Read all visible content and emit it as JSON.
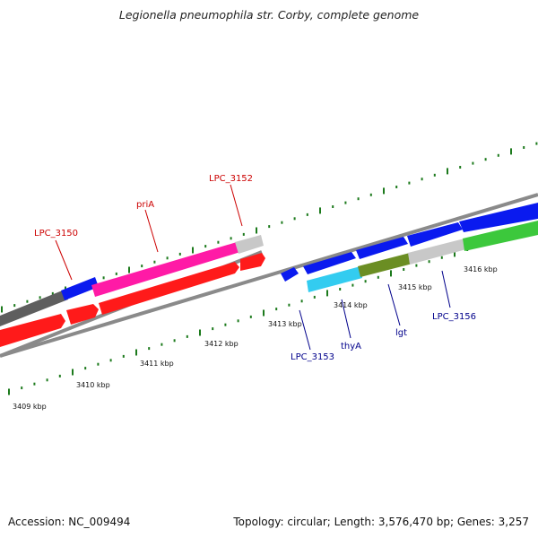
{
  "title": "Legionella pneumophila str. Corby, complete genome",
  "footer": {
    "accession": "Accession: NC_009494",
    "topology": "Topology: circular; Length: 3,576,470 bp; Genes: 3,257"
  },
  "colors": {
    "backbone": "#8a8a8a",
    "tick": "#1c7a1c",
    "label_forward": "#cc0000",
    "label_reverse": "#00008b",
    "red": "#ff1a1a",
    "magenta": "#ff1aa6",
    "blue": "#0a1aef",
    "cyan": "#33ccf0",
    "olive": "#6b8e23",
    "green": "#3cc83c",
    "dark_gray": "#5e5e5e",
    "light_gray": "#c8c8c8"
  },
  "kbp_labels": [
    "3409 kbp",
    "3410 kbp",
    "3411 kbp",
    "3412 kbp",
    "3413 kbp",
    "3414 kbp",
    "3415 kbp",
    "3416 kbp"
  ],
  "gene_labels_top": [
    "LPC_3150",
    "priA",
    "LPC_3152"
  ],
  "gene_labels_bottom": [
    "LPC_3153",
    "thyA",
    "lgt",
    "LPC_3156"
  ]
}
